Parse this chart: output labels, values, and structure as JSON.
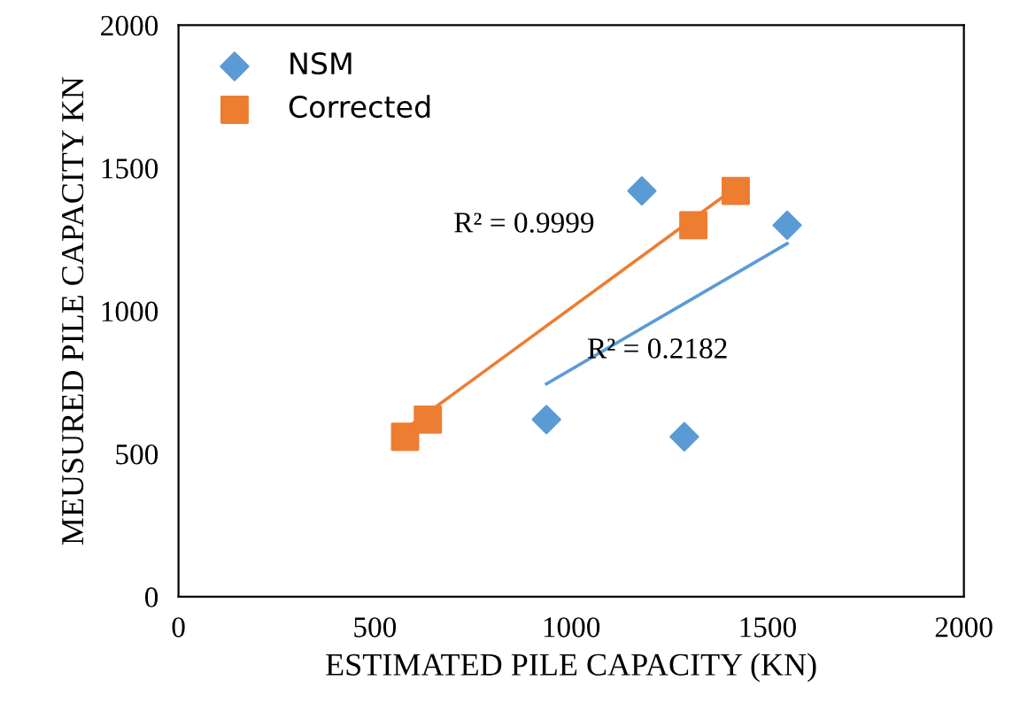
{
  "chart_data": {
    "type": "scatter",
    "xlabel": "ESTIMATED PILE CAPACITY (KN)",
    "ylabel": "MEUSURED PILE CAPACITY KN",
    "xlim": [
      0,
      2000
    ],
    "xticks": [
      0,
      500,
      1000,
      1500,
      2000
    ],
    "ylim": [
      0,
      2000
    ],
    "yticks": [
      0,
      500,
      1000,
      1500,
      2000
    ],
    "grid": false,
    "legend": "top left",
    "series": [
      {
        "name": "NSM",
        "color": "#5b9bd5",
        "marker": "diamond",
        "x": [
          937,
          1288,
          1180,
          1550
        ],
        "values": [
          620,
          560,
          1420,
          1300
        ]
      },
      {
        "name": "Corrected",
        "color": "#ed7d31",
        "marker": "square",
        "x": [
          577,
          635,
          1311,
          1419
        ],
        "values": [
          560,
          620,
          1300,
          1420
        ]
      },
      {
        "type": "line",
        "color": "#5b9bd5",
        "marker": "none",
        "x": [
          937,
          1550
        ],
        "values": [
          745,
          1236
        ]
      },
      {
        "type": "line",
        "color": "#ed7d31",
        "marker": "none",
        "x": [
          550,
          1428
        ],
        "values": [
          559,
          1441
        ]
      }
    ],
    "annotations": [
      "R² = 0.9999",
      "R² = 0.2182"
    ]
  }
}
